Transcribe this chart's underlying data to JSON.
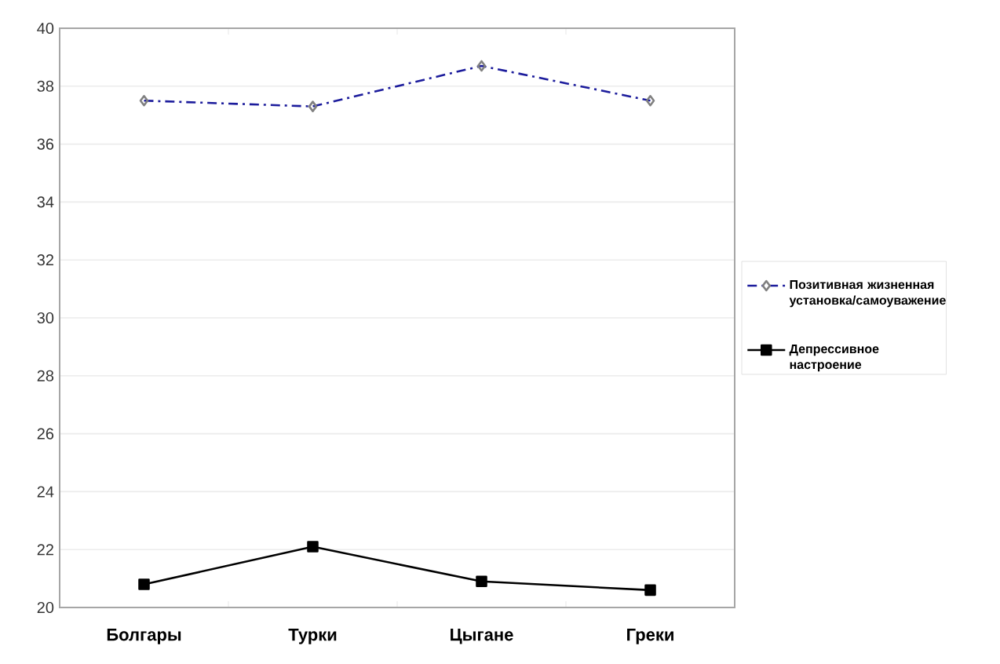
{
  "chart_data": {
    "type": "line",
    "categories": [
      "Болгары",
      "Турки",
      "Цыгане",
      "Греки"
    ],
    "series": [
      {
        "name": "Позитивная жизненная установка/самоуважение",
        "color": "#1c1c9c",
        "values": [
          37.5,
          37.3,
          38.7,
          37.5
        ],
        "marker": "diamond",
        "line_style": "dashdot"
      },
      {
        "name": "Депрессивное настроение",
        "color": "#000000",
        "values": [
          20.8,
          22.1,
          20.9,
          20.6
        ],
        "marker": "square",
        "line_style": "solid"
      }
    ],
    "ylim": [
      20,
      40
    ],
    "yticks": [
      20,
      22,
      24,
      26,
      28,
      30,
      32,
      34,
      36,
      38,
      40
    ],
    "grid": "y",
    "legend": "right"
  }
}
